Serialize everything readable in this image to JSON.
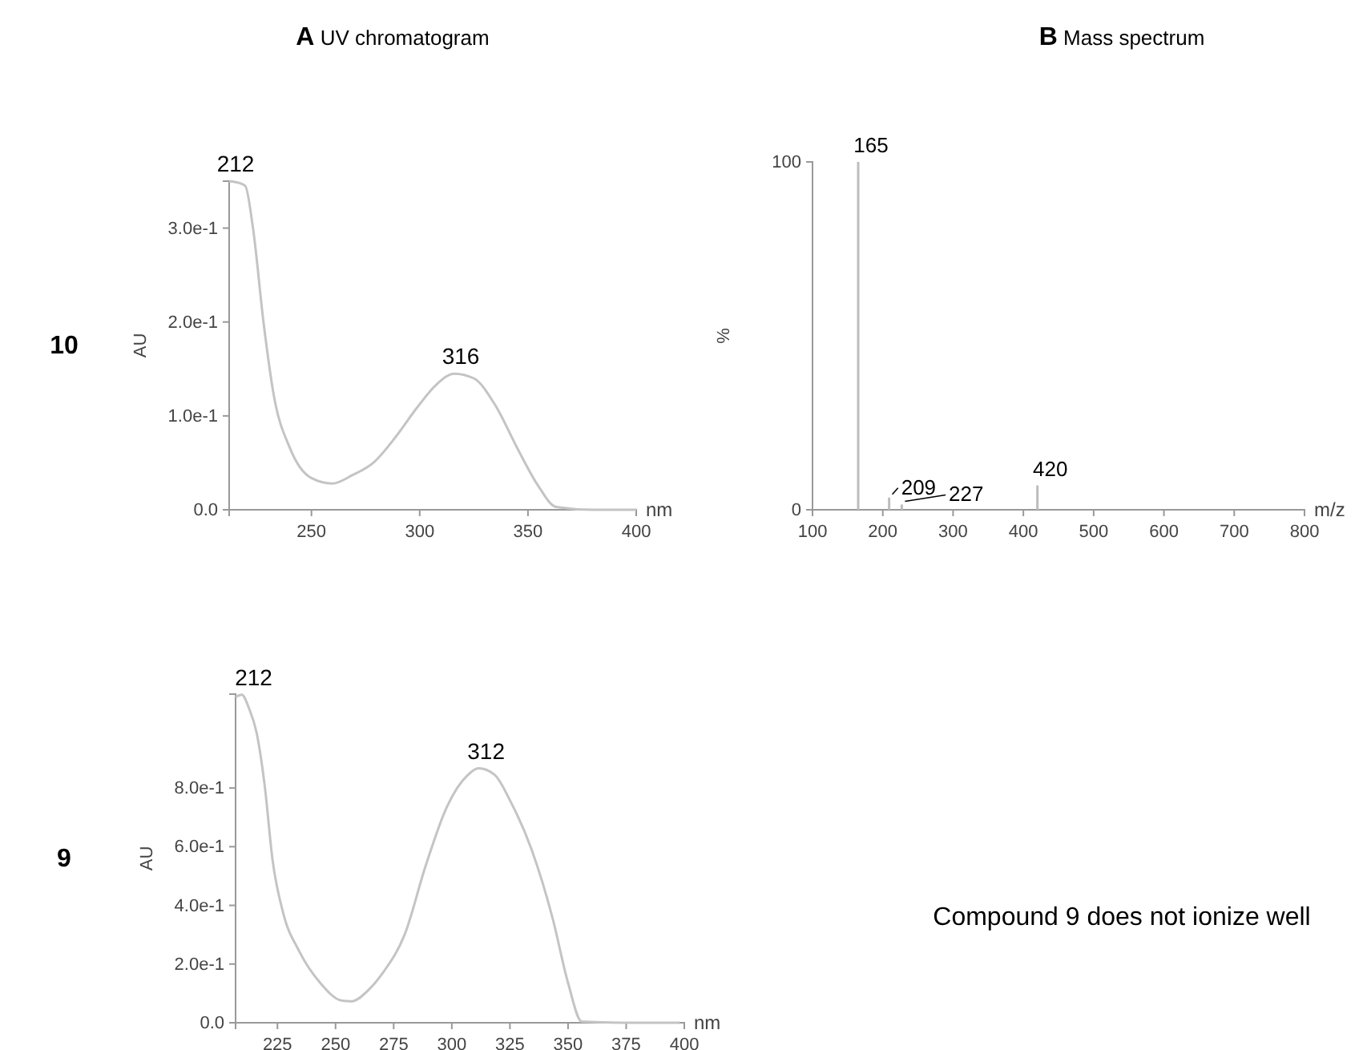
{
  "chart_data": [
    {
      "type": "line",
      "title": "A UV chromatogram",
      "xlabel": "nm",
      "ylabel": "AU",
      "color": "#c4c4c4",
      "x": [
        212,
        215,
        219.4,
        223,
        228,
        232.6,
        240,
        249.8,
        259.6,
        269,
        279,
        288.7,
        298.5,
        308,
        316,
        325,
        335,
        345,
        354.6,
        363,
        380,
        400
      ],
      "values": [
        0.35,
        0.349,
        0.345,
        0.3,
        0.197,
        0.122,
        0.066,
        0.034,
        0.028,
        0.037,
        0.051,
        0.077,
        0.108,
        0.134,
        0.145,
        0.14,
        0.111,
        0.066,
        0.026,
        0.003,
        0.0,
        0.0
      ],
      "xlim": [
        212,
        400
      ],
      "ylim": [
        0,
        0.35
      ],
      "xticks": [
        250,
        300,
        350,
        400
      ],
      "yticks": [
        {
          "value": 0,
          "label": "0.0"
        },
        {
          "value": 0.1,
          "label": "1.0e-1"
        },
        {
          "value": 0.2,
          "label": "2.0e-1"
        },
        {
          "value": 0.3,
          "label": "3.0e-1"
        }
      ],
      "annotations": [
        "10",
        {
          "text": "212",
          "x": 212,
          "y": 0.35
        },
        {
          "text": "316",
          "x": 316,
          "y": 0.145
        }
      ]
    },
    {
      "type": "bar",
      "title": "B Mass spectrum",
      "xlabel": "m/z",
      "ylabel": "%",
      "color": "#bdbdbd",
      "x": [
        165,
        209,
        227,
        420
      ],
      "values": [
        100,
        3.5,
        1.5,
        7
      ],
      "xlim": [
        100,
        800
      ],
      "ylim": [
        0,
        100
      ],
      "xticks": [
        100,
        200,
        300,
        400,
        500,
        600,
        700,
        800
      ],
      "yticks": [
        0,
        100
      ],
      "annotations": [
        {
          "text": "165",
          "x": 165,
          "y": 100
        },
        {
          "text": "209",
          "x": 209,
          "y": 3.5
        },
        {
          "text": "227",
          "x": 227,
          "y": 1.5
        },
        {
          "text": "420",
          "x": 420,
          "y": 7
        }
      ]
    },
    {
      "type": "line",
      "xlabel": "nm",
      "ylabel": "AU",
      "color": "#c4c4c4",
      "x": [
        207,
        209.7,
        212.7,
        216,
        219.5,
        222.9,
        227.5,
        234.3,
        243.4,
        252.5,
        257,
        263.8,
        270.6,
        279.7,
        288.8,
        297.9,
        307,
        311.5,
        318.4,
        325.2,
        334.3,
        343.4,
        350,
        355.9,
        380,
        398
      ],
      "values": [
        1.11,
        1.118,
        1.073,
        0.99,
        0.81,
        0.555,
        0.373,
        0.245,
        0.136,
        0.076,
        0.073,
        0.109,
        0.173,
        0.3,
        0.536,
        0.736,
        0.845,
        0.867,
        0.845,
        0.755,
        0.591,
        0.355,
        0.136,
        0.004,
        0,
        0
      ],
      "xlim": [
        207,
        400
      ],
      "ylim": [
        0,
        1.12
      ],
      "xticks": [
        225,
        250,
        275,
        300,
        325,
        350,
        375,
        400
      ],
      "yticks": [
        {
          "value": 0,
          "label": "0.0"
        },
        {
          "value": 0.2,
          "label": "2.0e-1"
        },
        {
          "value": 0.4,
          "label": "4.0e-1"
        },
        {
          "value": 0.6,
          "label": "6.0e-1"
        },
        {
          "value": 0.8,
          "label": "8.0e-1"
        }
      ],
      "annotations": [
        "9",
        {
          "text": "212",
          "x": 212,
          "y": 1.118
        },
        {
          "text": "312",
          "x": 312,
          "y": 0.867
        }
      ]
    },
    {
      "type": "other",
      "annotations": [
        "Compound 9 does not ionize well"
      ]
    }
  ]
}
